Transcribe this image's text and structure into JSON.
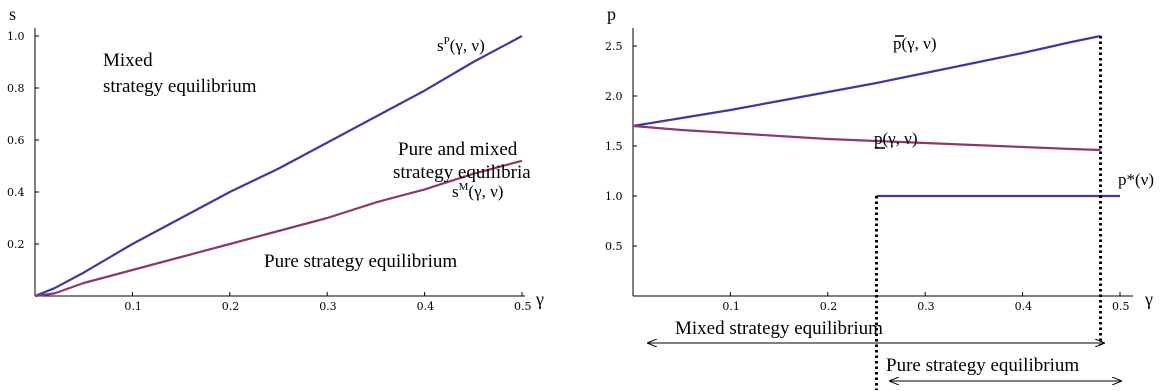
{
  "left_chart": {
    "ylabel": "s",
    "xlabel": "γ",
    "annotations": {
      "mixed_l1": "Mixed",
      "mixed_l2": "strategy equilibrium",
      "pm_l1": "Pure and mixed",
      "pm_l2": "strategy equilibria",
      "pure": "Pure strategy equilibrium"
    },
    "series_labels": {
      "sp_base": "s",
      "sp_sup": "P",
      "sp_args": "(γ, ν)",
      "sm_base": "s",
      "sm_sup": "M",
      "sm_args": "(γ, ν)"
    }
  },
  "right_chart": {
    "ylabel": "p",
    "xlabel": "γ",
    "series_labels": {
      "pbar": "p(γ, ν)",
      "punder": "p(γ, ν)",
      "pstar": "p*(ν)"
    },
    "annotations": {
      "mixed": "Mixed strategy equilibrium",
      "pure": "Pure strategy equilibrium"
    }
  },
  "chart_data": [
    {
      "type": "line",
      "xlim": [
        0,
        0.5
      ],
      "ylim": [
        0,
        1.0
      ],
      "x_ticks": [
        "0.1",
        "0.2",
        "0.3",
        "0.4",
        "0.5"
      ],
      "y_ticks": [
        "0.2",
        "0.4",
        "0.6",
        "0.8",
        "1.0"
      ],
      "series": [
        {
          "name": "sP(γ, ν)",
          "color": "#3b3b9e",
          "x": [
            0,
            0.02,
            0.05,
            0.1,
            0.15,
            0.2,
            0.25,
            0.3,
            0.35,
            0.4,
            0.45,
            0.5
          ],
          "y": [
            0,
            0.03,
            0.09,
            0.2,
            0.3,
            0.4,
            0.49,
            0.59,
            0.69,
            0.79,
            0.9,
            1.0
          ]
        },
        {
          "name": "sM(γ, ν)",
          "color": "#8b3a6b",
          "x": [
            0,
            0.02,
            0.05,
            0.1,
            0.15,
            0.2,
            0.25,
            0.3,
            0.35,
            0.4,
            0.45,
            0.5
          ],
          "y": [
            0,
            0.01,
            0.05,
            0.1,
            0.15,
            0.2,
            0.25,
            0.3,
            0.36,
            0.41,
            0.47,
            0.52
          ]
        }
      ]
    },
    {
      "type": "line",
      "xlim": [
        0,
        0.5
      ],
      "ylim": [
        0,
        2.6
      ],
      "x_ticks": [
        "0.1",
        "0.2",
        "0.3",
        "0.4",
        "0.5"
      ],
      "y_ticks": [
        "0.5",
        "1.0",
        "1.5",
        "2.0",
        "2.5"
      ],
      "series": [
        {
          "name": "p̄(γ, ν)",
          "color": "#3b3b9e",
          "x": [
            0,
            0.05,
            0.1,
            0.15,
            0.2,
            0.25,
            0.3,
            0.35,
            0.4,
            0.45,
            0.48
          ],
          "y": [
            1.7,
            1.78,
            1.86,
            1.95,
            2.04,
            2.13,
            2.23,
            2.33,
            2.43,
            2.54,
            2.6
          ]
        },
        {
          "name": "p(γ, ν)",
          "color": "#8b3a6b",
          "x": [
            0,
            0.05,
            0.1,
            0.15,
            0.2,
            0.25,
            0.3,
            0.35,
            0.4,
            0.45,
            0.48
          ],
          "y": [
            1.7,
            1.66,
            1.63,
            1.6,
            1.57,
            1.55,
            1.53,
            1.51,
            1.49,
            1.47,
            1.46
          ]
        },
        {
          "name": "p*(ν)",
          "color": "#3b3b9e",
          "x": [
            0.25,
            0.5
          ],
          "y": [
            1.0,
            1.0
          ]
        }
      ],
      "thresholds": [
        0.25,
        0.48
      ]
    }
  ]
}
